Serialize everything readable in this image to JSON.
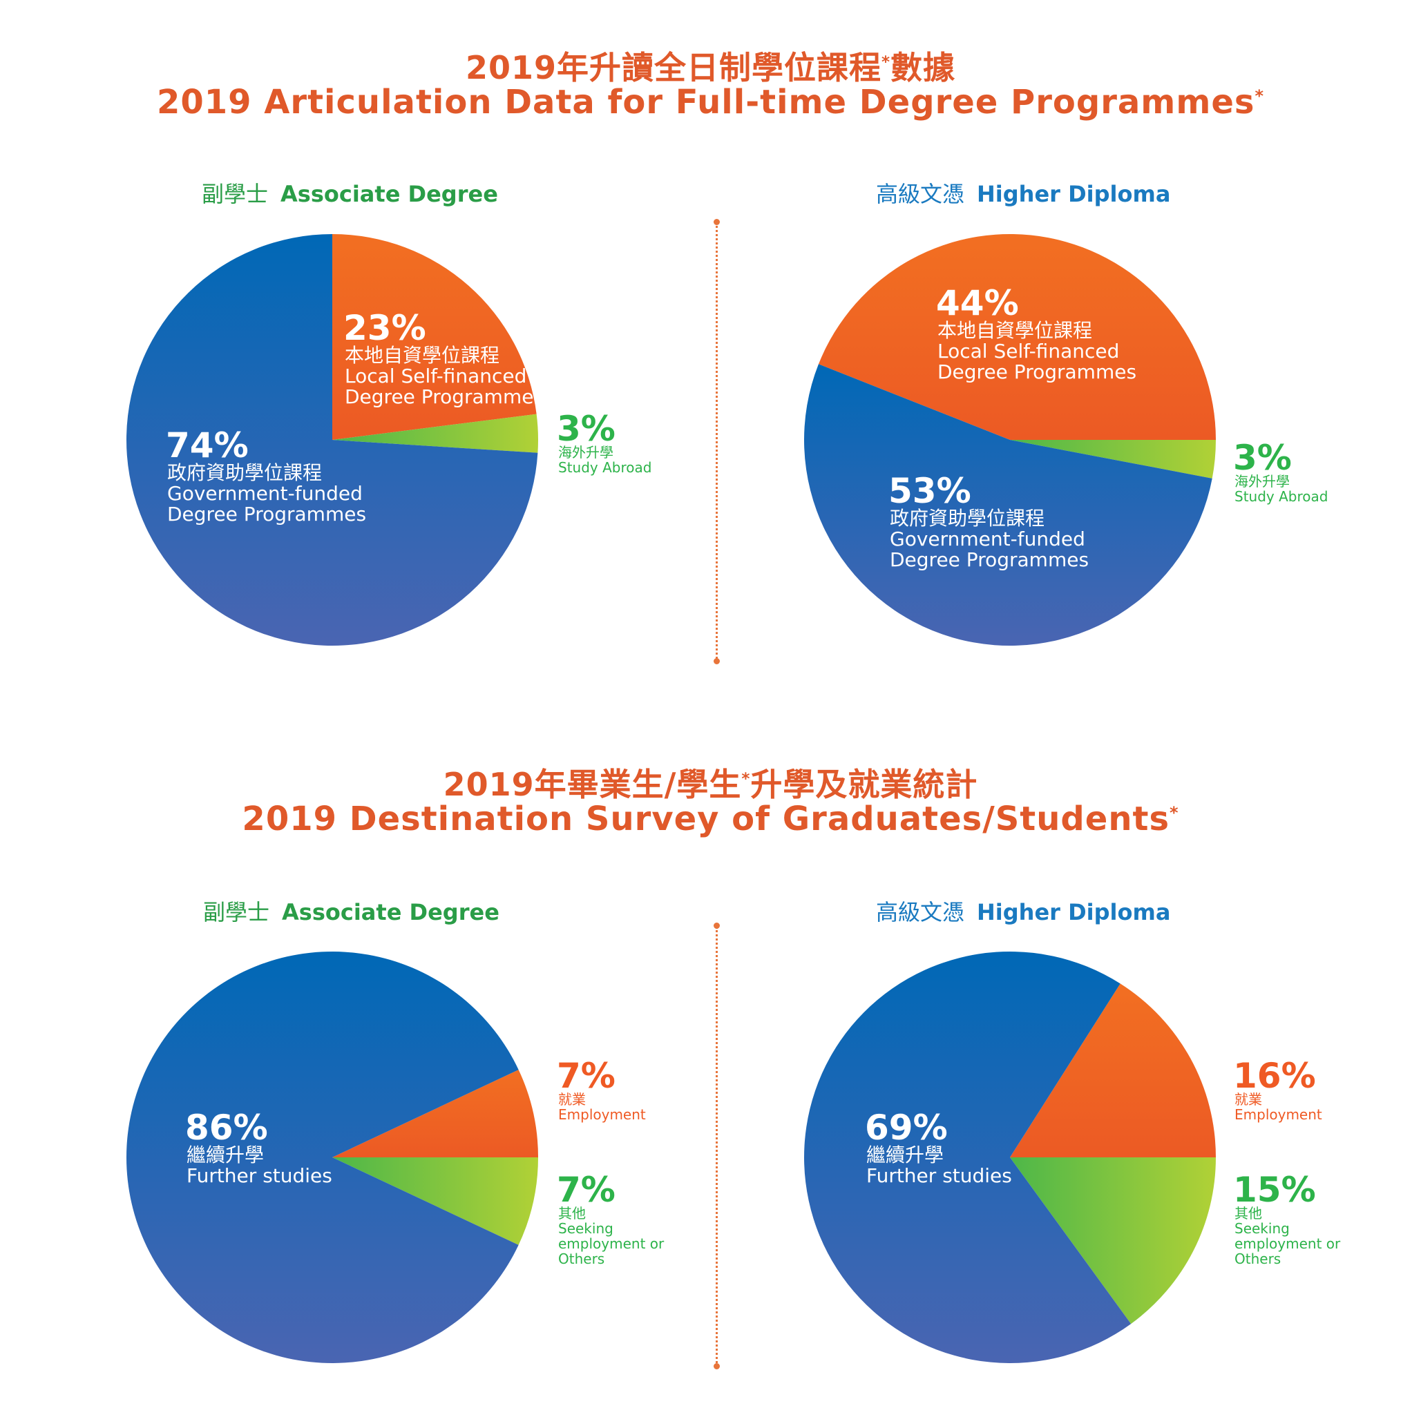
{
  "section1": {
    "title_zh": "2019年升讀全日制學位課程",
    "title_zh_tail": "數據",
    "title_en": "2019 Articulation Data for Full-time Degree Programmes",
    "asterisk": "*"
  },
  "section2": {
    "title_zh": "2019年畢業生/學生",
    "title_zh_tail": "升學及就業統計",
    "title_en": "2019 Destination Survey of Graduates/Students",
    "asterisk": "*"
  },
  "subtitles": {
    "ad_zh": "副學士",
    "ad_en": "Associate Degree",
    "hd_zh": "高級文憑",
    "hd_en": "Higher Diploma"
  },
  "colors": {
    "title": "#e0592a",
    "blue_top": "#0068b6",
    "blue_bottom": "#4a65b2",
    "orange_top": "#f26f22",
    "orange_bottom": "#ec5a24",
    "green_start": "#4db749",
    "green_end": "#b1d136",
    "green_text": "#2db34a",
    "orange_text": "#ef5a24"
  },
  "chart_data": [
    {
      "type": "pie",
      "id": "articulation-ad",
      "slices": [
        {
          "value": 23,
          "color": "orange",
          "pct": "23%",
          "lines": [
            "本地自資學位課程",
            "Local Self-financed",
            "Degree Programmes"
          ]
        },
        {
          "value": 3,
          "color": "green",
          "pct": "3%",
          "lines": [
            "海外升學",
            "Study Abroad"
          ]
        },
        {
          "value": 74,
          "color": "blue",
          "pct": "74%",
          "lines": [
            "政府資助學位課程",
            "Government-funded",
            "Degree Programmes"
          ]
        }
      ]
    },
    {
      "type": "pie",
      "id": "articulation-hd",
      "slices": [
        {
          "value": 44,
          "color": "orange",
          "pct": "44%",
          "lines": [
            "本地自資學位課程",
            "Local Self-financed",
            "Degree Programmes"
          ]
        },
        {
          "value": 3,
          "color": "green",
          "pct": "3%",
          "lines": [
            "海外升學",
            "Study Abroad"
          ]
        },
        {
          "value": 53,
          "color": "blue",
          "pct": "53%",
          "lines": [
            "政府資助學位課程",
            "Government-funded",
            "Degree Programmes"
          ]
        }
      ]
    },
    {
      "type": "pie",
      "id": "destination-ad",
      "slices": [
        {
          "value": 7,
          "color": "orange",
          "pct": "7%",
          "lines": [
            "就業",
            "Employment"
          ]
        },
        {
          "value": 7,
          "color": "green",
          "pct": "7%",
          "lines": [
            "其他",
            "Seeking",
            "employment or",
            "Others"
          ]
        },
        {
          "value": 86,
          "color": "blue",
          "pct": "86%",
          "lines": [
            "繼續升學",
            "Further studies"
          ]
        }
      ]
    },
    {
      "type": "pie",
      "id": "destination-hd",
      "slices": [
        {
          "value": 16,
          "color": "orange",
          "pct": "16%",
          "lines": [
            "就業",
            "Employment"
          ]
        },
        {
          "value": 15,
          "color": "green",
          "pct": "15%",
          "lines": [
            "其他",
            "Seeking",
            "employment or",
            "Others"
          ]
        },
        {
          "value": 69,
          "color": "blue",
          "pct": "69%",
          "lines": [
            "繼續升學",
            "Further studies"
          ]
        }
      ]
    }
  ]
}
